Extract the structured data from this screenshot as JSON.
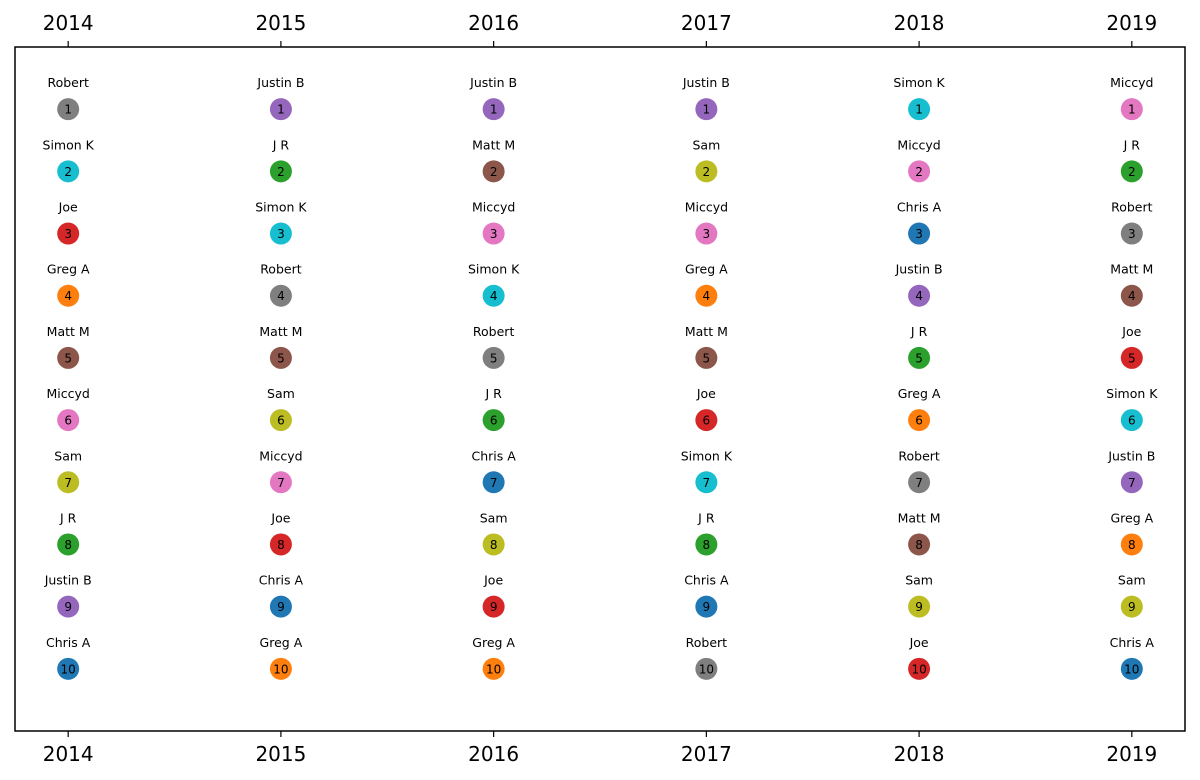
{
  "chart_data": {
    "type": "scatter",
    "title": "",
    "xlabel": "",
    "ylabel": "",
    "x_ticks": [
      "2014",
      "2015",
      "2016",
      "2017",
      "2018",
      "2019"
    ],
    "ranks": [
      1,
      2,
      3,
      4,
      5,
      6,
      7,
      8,
      9,
      10
    ],
    "xlim": [
      2013.75,
      2019.25
    ],
    "ylim": [
      11,
      0
    ],
    "grid": false,
    "colors": {
      "Robert": "#7f7f7f",
      "Simon K": "#17becf",
      "Joe": "#d62728",
      "Greg A": "#ff7f0e",
      "Matt M": "#8c564b",
      "Miccyd": "#e377c2",
      "Sam": "#bcbd22",
      "J R": "#2ca02c",
      "Justin B": "#9467bd",
      "Chris A": "#1f77b4"
    },
    "columns": [
      {
        "year": "2014",
        "names": [
          "Robert",
          "Simon K",
          "Joe",
          "Greg A",
          "Matt M",
          "Miccyd",
          "Sam",
          "J R",
          "Justin B",
          "Chris A"
        ]
      },
      {
        "year": "2015",
        "names": [
          "Justin B",
          "J R",
          "Simon K",
          "Robert",
          "Matt M",
          "Sam",
          "Miccyd",
          "Joe",
          "Chris A",
          "Greg A"
        ]
      },
      {
        "year": "2016",
        "names": [
          "Justin B",
          "Matt M",
          "Miccyd",
          "Simon K",
          "Robert",
          "J R",
          "Chris A",
          "Sam",
          "Joe",
          "Greg A"
        ]
      },
      {
        "year": "2017",
        "names": [
          "Justin B",
          "Sam",
          "Miccyd",
          "Greg A",
          "Matt M",
          "Joe",
          "Simon K",
          "J R",
          "Chris A",
          "Robert"
        ]
      },
      {
        "year": "2018",
        "names": [
          "Simon K",
          "Miccyd",
          "Chris A",
          "Justin B",
          "J R",
          "Greg A",
          "Robert",
          "Matt M",
          "Sam",
          "Joe"
        ]
      },
      {
        "year": "2019",
        "names": [
          "Miccyd",
          "J R",
          "Robert",
          "Matt M",
          "Joe",
          "Simon K",
          "Justin B",
          "Greg A",
          "Sam",
          "Chris A"
        ]
      }
    ]
  }
}
